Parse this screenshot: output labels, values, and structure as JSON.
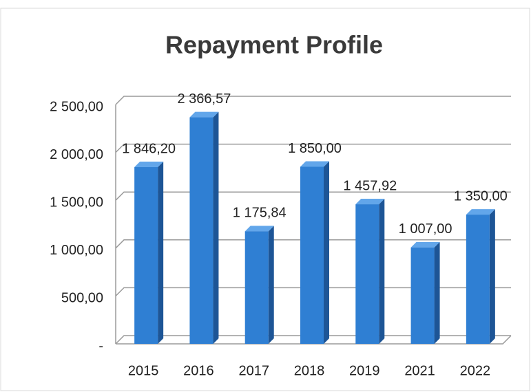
{
  "chart_data": {
    "type": "bar",
    "title": "Repayment Profile",
    "categories": [
      "2015",
      "2016",
      "2017",
      "2018",
      "2019",
      "2021",
      "2022"
    ],
    "values": [
      1846.2,
      2366.57,
      1175.84,
      1850.0,
      1457.92,
      1007.0,
      1350.0
    ],
    "value_labels": [
      "1 846,20",
      "2 366,57",
      "1 175,84",
      "1 850,00",
      "1 457,92",
      "1 007,00",
      "1 350,00"
    ],
    "color": "#2f7fd3",
    "ylim": [
      0,
      2500
    ],
    "yticks": [
      {
        "value": 0,
        "label": "-"
      },
      {
        "value": 500,
        "label": "500,00"
      },
      {
        "value": 1000,
        "label": "1 000,00"
      },
      {
        "value": 1500,
        "label": "1 500,00"
      },
      {
        "value": 2000,
        "label": "2 000,00"
      },
      {
        "value": 2500,
        "label": "2 500,00"
      }
    ],
    "grid": true
  }
}
